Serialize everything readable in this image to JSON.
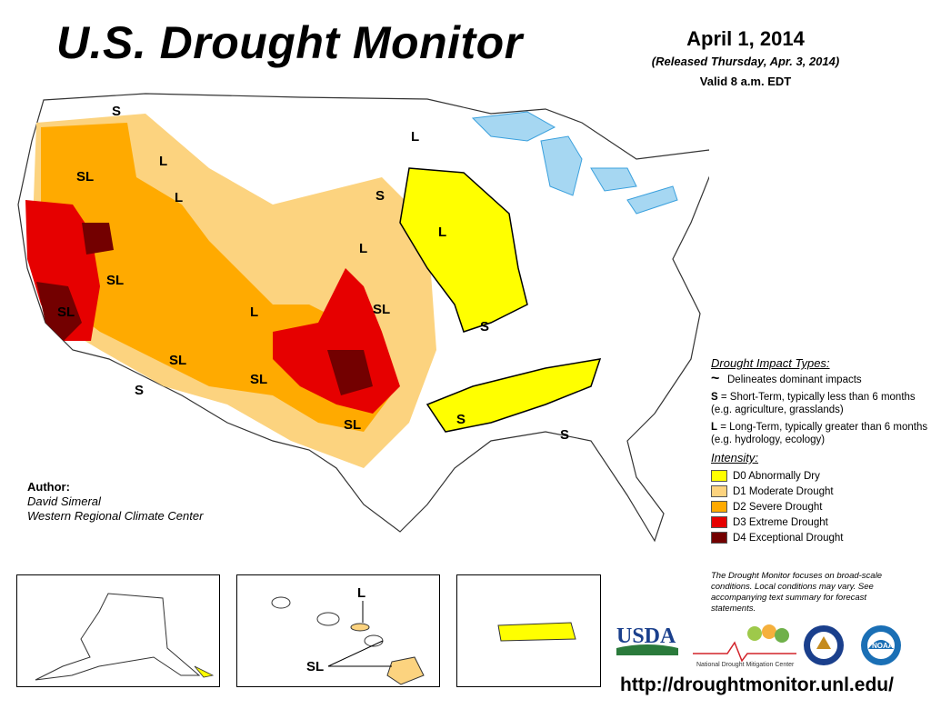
{
  "header": {
    "title": "U.S. Drought Monitor",
    "date": "April 1, 2014",
    "released": "(Released Thursday, Apr. 3, 2014)",
    "valid": "Valid 8 a.m. EDT"
  },
  "colors": {
    "D0": "#ffff00",
    "D1": "#fcd37f",
    "D2": "#ffaa00",
    "D3": "#e60000",
    "D4": "#730000",
    "water": "#a6d7f2",
    "rivers": "#3aa0dd"
  },
  "map_labels": {
    "s_pnw": "S",
    "l_id": "L",
    "sl_or": "SL",
    "l_id2": "L",
    "l_nd": "L",
    "s_sd": "S",
    "l_ia": "L",
    "l_ne": "L",
    "sl_nv": "SL",
    "sl_ca": "SL",
    "l_co": "L",
    "sl_ks": "SL",
    "s_mo": "S",
    "sl_az": "SL",
    "s_az": "S",
    "sl_nm": "SL",
    "sl_tx": "SL",
    "s_ar": "S",
    "s_ga": "S"
  },
  "legend": {
    "impact_heading": "Drought Impact Types:",
    "delineates": "Delineates dominant impacts",
    "short_term_key": "S",
    "short_term_text": " = Short-Term, typically less than 6 months (e.g. agriculture, grasslands)",
    "long_term_key": "L",
    "long_term_text": " = Long-Term, typically greater than 6 months (e.g. hydrology, ecology)",
    "intensity_heading": "Intensity:",
    "intensity": [
      {
        "code": "D0",
        "label": "D0 Abnormally Dry"
      },
      {
        "code": "D1",
        "label": "D1 Moderate Drought"
      },
      {
        "code": "D2",
        "label": "D2 Severe Drought"
      },
      {
        "code": "D3",
        "label": "D3 Extreme Drought"
      },
      {
        "code": "D4",
        "label": "D4 Exceptional Drought"
      }
    ]
  },
  "author": {
    "label": "Author:",
    "name": "David Simeral",
    "org": "Western Regional Climate Center"
  },
  "insets": {
    "hawaii_l": "L",
    "hawaii_sl": "SL"
  },
  "note": "The Drought Monitor focuses on broad-scale conditions. Local conditions may vary. See accompanying text summary for forecast statements.",
  "logos": {
    "usda": "USDA",
    "ndmc": "National Drought Mitigation Center",
    "doc": "Department of Commerce seal",
    "noaa": "NOAA"
  },
  "url": "http://droughtmonitor.unl.edu/"
}
